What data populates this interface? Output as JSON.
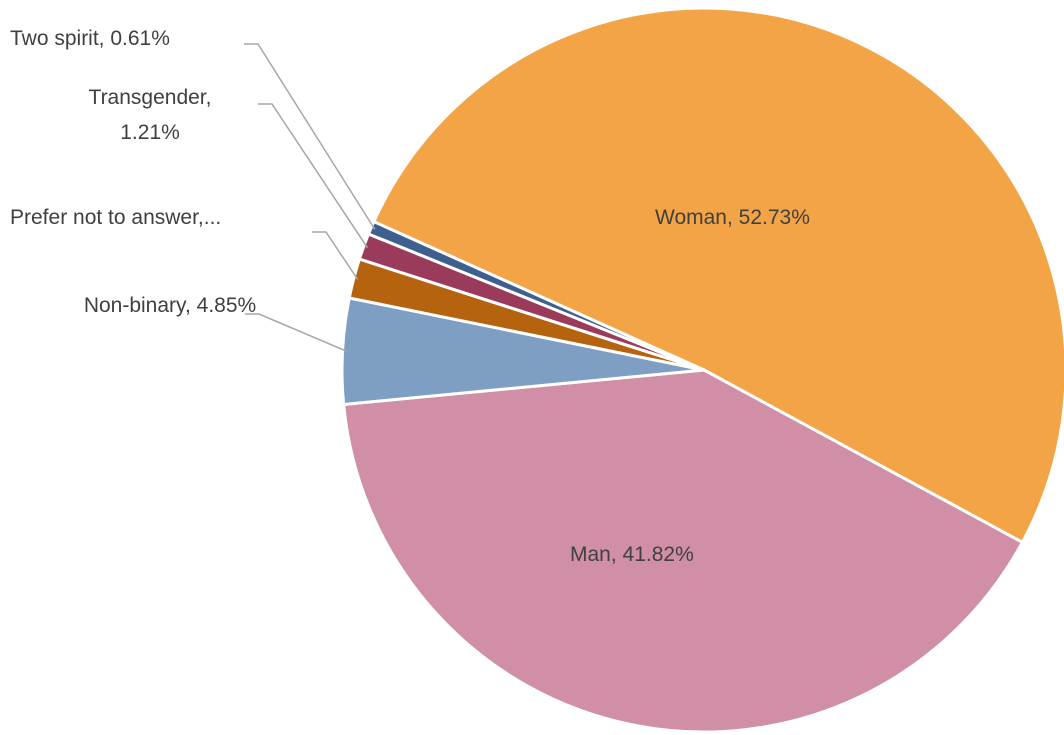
{
  "chart_data": {
    "type": "pie",
    "values": [
      52.73,
      41.82,
      4.85,
      1.82,
      1.21,
      0.61
    ],
    "value_labels": [
      "Woman, 52.73%",
      "Man, 41.82%",
      "Non-binary, 4.85%",
      "Prefer not to answer,...",
      "Transgender, 1.21%",
      "Two spirit, 0.61%"
    ],
    "colors": [
      "#f2a446",
      "#d08fa6",
      "#7f9ec4",
      "#b5630f",
      "#9b3b5c",
      "#3f5f8f"
    ]
  }
}
